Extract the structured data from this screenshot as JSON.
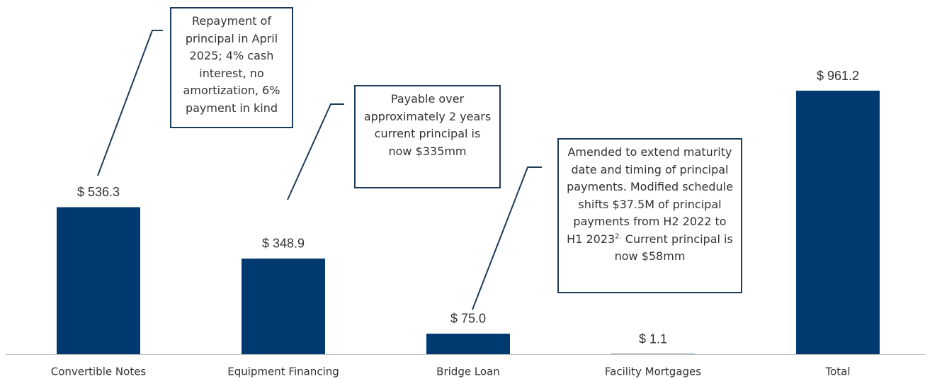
{
  "chart_data": {
    "type": "bar",
    "categories": [
      "Convertible Notes",
      "Equipment Financing",
      "Bridge Loan",
      "Facility Mortgages",
      "Total"
    ],
    "values": [
      536.3,
      348.9,
      75.0,
      1.1,
      961.2
    ],
    "value_labels": [
      "$ 536.3",
      "$ 348.9",
      "$ 75.0",
      "$ 1.1",
      "$ 961.2"
    ],
    "color": "#003a70",
    "annotations": [
      {
        "text": "Repayment of principal in April 2025; 4% cash interest, no amortization, 6% payment in kind"
      },
      {
        "text": "Payable over approximately 2 years current principal is now $335mm"
      },
      {
        "text": "Amended to extend maturity date and timing of principal payments. Modified schedule shifts $37.5M of principal payments from H2 2022 to H1 2023",
        "footnote": "2.",
        "text_after": " Current principal is now $58mm"
      }
    ]
  }
}
